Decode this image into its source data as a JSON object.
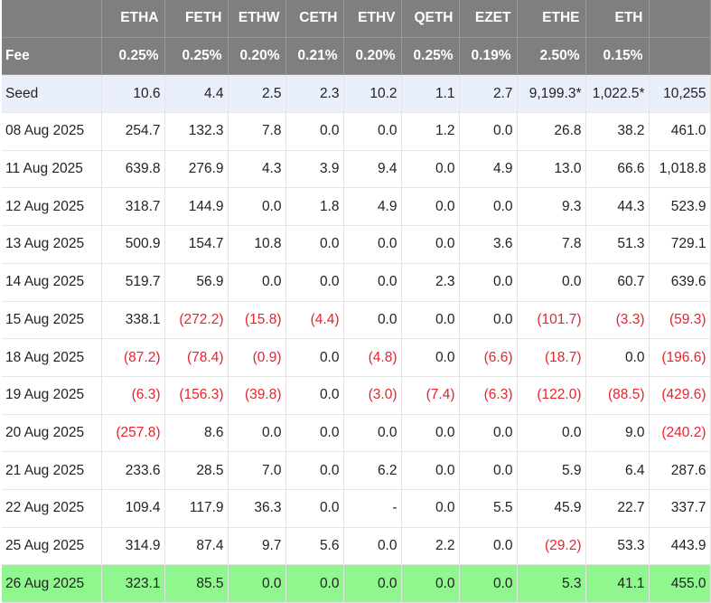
{
  "colors": {
    "header_bg": "#7f7f7f",
    "seed_row_bg": "#e9effb",
    "highlight_row_bg": "#8ff78e",
    "negative_text": "#e8232b"
  },
  "columns": [
    "",
    "ETHA",
    "FETH",
    "ETHW",
    "CETH",
    "ETHV",
    "QETH",
    "EZET",
    "ETHE",
    "ETH",
    ""
  ],
  "fee_row": [
    "Fee",
    "0.25%",
    "0.25%",
    "0.20%",
    "0.21%",
    "0.20%",
    "0.25%",
    "0.19%",
    "2.50%",
    "0.15%",
    ""
  ],
  "rows": [
    {
      "label": "Seed",
      "style": "seed",
      "cells": [
        "10.6",
        "4.4",
        "2.5",
        "2.3",
        "10.2",
        "1.1",
        "2.7",
        "9,199.3*",
        "1,022.5*",
        "10,255"
      ]
    },
    {
      "label": "08 Aug 2025",
      "style": "",
      "cells": [
        "254.7",
        "132.3",
        "7.8",
        "0.0",
        "0.0",
        "1.2",
        "0.0",
        "26.8",
        "38.2",
        "461.0"
      ]
    },
    {
      "label": "11 Aug 2025",
      "style": "",
      "cells": [
        "639.8",
        "276.9",
        "4.3",
        "3.9",
        "9.4",
        "0.0",
        "4.9",
        "13.0",
        "66.6",
        "1,018.8"
      ]
    },
    {
      "label": "12 Aug 2025",
      "style": "",
      "cells": [
        "318.7",
        "144.9",
        "0.0",
        "1.8",
        "4.9",
        "0.0",
        "0.0",
        "9.3",
        "44.3",
        "523.9"
      ]
    },
    {
      "label": "13 Aug 2025",
      "style": "",
      "cells": [
        "500.9",
        "154.7",
        "10.8",
        "0.0",
        "0.0",
        "0.0",
        "3.6",
        "7.8",
        "51.3",
        "729.1"
      ]
    },
    {
      "label": "14 Aug 2025",
      "style": "",
      "cells": [
        "519.7",
        "56.9",
        "0.0",
        "0.0",
        "0.0",
        "2.3",
        "0.0",
        "0.0",
        "60.7",
        "639.6"
      ]
    },
    {
      "label": "15 Aug 2025",
      "style": "",
      "cells": [
        "338.1",
        "(272.2)",
        "(15.8)",
        "(4.4)",
        "0.0",
        "0.0",
        "0.0",
        "(101.7)",
        "(3.3)",
        "(59.3)"
      ]
    },
    {
      "label": "18 Aug 2025",
      "style": "",
      "cells": [
        "(87.2)",
        "(78.4)",
        "(0.9)",
        "0.0",
        "(4.8)",
        "0.0",
        "(6.6)",
        "(18.7)",
        "0.0",
        "(196.6)"
      ]
    },
    {
      "label": "19 Aug 2025",
      "style": "",
      "cells": [
        "(6.3)",
        "(156.3)",
        "(39.8)",
        "0.0",
        "(3.0)",
        "(7.4)",
        "(6.3)",
        "(122.0)",
        "(88.5)",
        "(429.6)"
      ]
    },
    {
      "label": "20 Aug 2025",
      "style": "",
      "cells": [
        "(257.8)",
        "8.6",
        "0.0",
        "0.0",
        "0.0",
        "0.0",
        "0.0",
        "0.0",
        "9.0",
        "(240.2)"
      ]
    },
    {
      "label": "21 Aug 2025",
      "style": "",
      "cells": [
        "233.6",
        "28.5",
        "7.0",
        "0.0",
        "6.2",
        "0.0",
        "0.0",
        "5.9",
        "6.4",
        "287.6"
      ]
    },
    {
      "label": "22 Aug 2025",
      "style": "",
      "cells": [
        "109.4",
        "117.9",
        "36.3",
        "0.0",
        "-",
        "0.0",
        "5.5",
        "45.9",
        "22.7",
        "337.7"
      ]
    },
    {
      "label": "25 Aug 2025",
      "style": "",
      "cells": [
        "314.9",
        "87.4",
        "9.7",
        "5.6",
        "0.0",
        "2.2",
        "0.0",
        "(29.2)",
        "53.3",
        "443.9"
      ]
    },
    {
      "label": "26 Aug 2025",
      "style": "hl",
      "cells": [
        "323.1",
        "85.5",
        "0.0",
        "0.0",
        "0.0",
        "0.0",
        "0.0",
        "5.3",
        "41.1",
        "455.0"
      ]
    }
  ]
}
